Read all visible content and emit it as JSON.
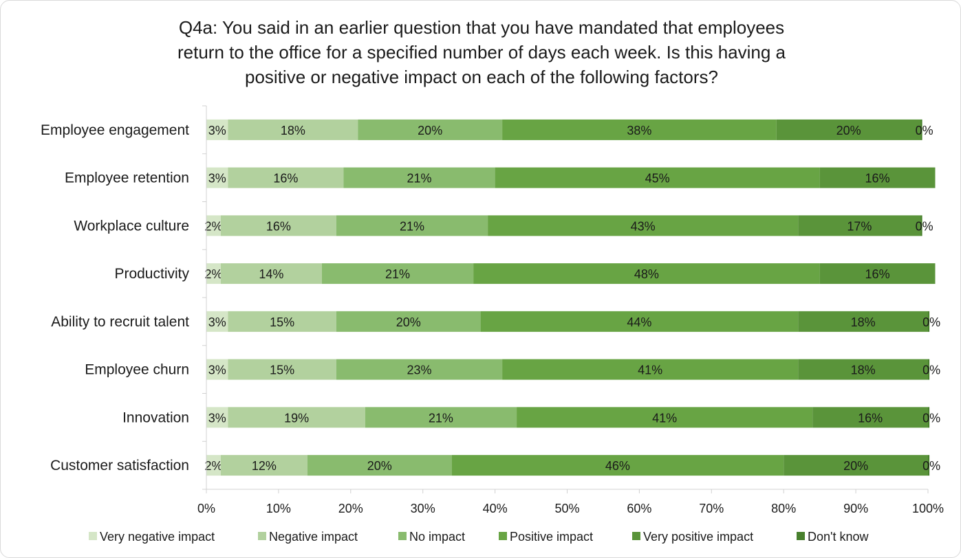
{
  "chart_data": {
    "type": "bar",
    "orientation": "horizontal",
    "stacked": true,
    "title": [
      "Q4a: You said in an earlier question that you have mandated that employees",
      "return to the office for a specified number of days each week. Is this having a",
      "positive or negative impact on each of the following factors?"
    ],
    "categories": [
      "Employee engagement",
      "Employee retention",
      "Workplace culture",
      "Productivity",
      "Ability to recruit talent",
      "Employee churn",
      "Innovation",
      "Customer satisfaction"
    ],
    "series": [
      {
        "name": "Very negative impact",
        "color": "#d5e6c7",
        "values": [
          3,
          3,
          2,
          2,
          3,
          3,
          3,
          2
        ],
        "labels": [
          "3%",
          "3%",
          "2%",
          "2%",
          "3%",
          "3%",
          "3%",
          "2%"
        ]
      },
      {
        "name": "Negative impact",
        "color": "#b2d19e",
        "values": [
          18,
          16,
          16,
          14,
          15,
          15,
          19,
          12
        ],
        "labels": [
          "18%",
          "16%",
          "16%",
          "14%",
          "15%",
          "15%",
          "19%",
          "12%"
        ]
      },
      {
        "name": "No impact",
        "color": "#89bb6e",
        "values": [
          20,
          21,
          21,
          21,
          20,
          23,
          21,
          20
        ],
        "labels": [
          "20%",
          "21%",
          "21%",
          "21%",
          "20%",
          "23%",
          "21%",
          "20%"
        ]
      },
      {
        "name": "Positive impact",
        "color": "#68a444",
        "values": [
          38,
          45,
          43,
          48,
          44,
          41,
          41,
          46
        ],
        "labels": [
          "38%",
          "45%",
          "43%",
          "48%",
          "44%",
          "41%",
          "41%",
          "46%"
        ]
      },
      {
        "name": "Very positive impact",
        "color": "#5a943a",
        "values": [
          20,
          16,
          17,
          16,
          18,
          18,
          16,
          20
        ],
        "labels": [
          "20%",
          "16%",
          "17%",
          "16%",
          "18%",
          "18%",
          "16%",
          "20%"
        ]
      },
      {
        "name": "Don't know",
        "color": "#48802d",
        "values": [
          0.2,
          0,
          0.2,
          0,
          0.2,
          0.2,
          0.2,
          0.2
        ],
        "labels": [
          "0%",
          "",
          "0%",
          "",
          "0%",
          "0%",
          "0%",
          "0%"
        ]
      }
    ],
    "xlim": [
      0,
      100
    ],
    "xticks": [
      0,
      10,
      20,
      30,
      40,
      50,
      60,
      70,
      80,
      90,
      100
    ],
    "xtick_labels": [
      "0%",
      "10%",
      "20%",
      "30%",
      "40%",
      "50%",
      "60%",
      "70%",
      "80%",
      "90%",
      "100%"
    ],
    "grid": false,
    "legend_position": "bottom"
  }
}
